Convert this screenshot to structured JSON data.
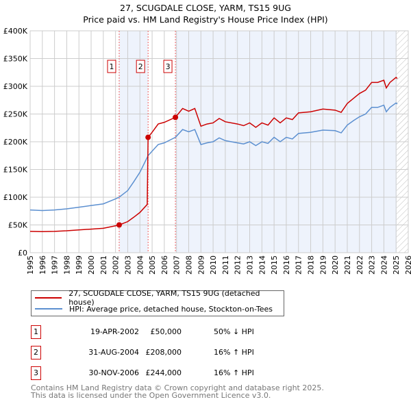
{
  "chart_data": {
    "type": "line",
    "title": "27, SCUGDALE CLOSE, YARM, TS15 9UG",
    "subtitle": "Price paid vs. HM Land Registry's House Price Index (HPI)",
    "xlim": [
      1995,
      2026
    ],
    "ylim": [
      0,
      400000
    ],
    "yticks": [
      {
        "v": 0,
        "label": "£0"
      },
      {
        "v": 50000,
        "label": "£50K"
      },
      {
        "v": 100000,
        "label": "£100K"
      },
      {
        "v": 150000,
        "label": "£150K"
      },
      {
        "v": 200000,
        "label": "£200K"
      },
      {
        "v": 250000,
        "label": "£250K"
      },
      {
        "v": 300000,
        "label": "£300K"
      },
      {
        "v": 350000,
        "label": "£350K"
      },
      {
        "v": 400000,
        "label": "£400K"
      }
    ],
    "xticks": [
      "1995",
      "1996",
      "1997",
      "1998",
      "1999",
      "2000",
      "2001",
      "2002",
      "2003",
      "2004",
      "2005",
      "2006",
      "2007",
      "2008",
      "2009",
      "2010",
      "2011",
      "2012",
      "2013",
      "2014",
      "2015",
      "2016",
      "2017",
      "2018",
      "2019",
      "2020",
      "2021",
      "2022",
      "2023",
      "2024",
      "2025",
      "2026"
    ],
    "grid": true,
    "series": [
      {
        "name": "27, SCUGDALE CLOSE, YARM, TS15 9UG (detached house)",
        "color": "#cc0000",
        "x": [
          1995,
          1996,
          1997,
          1998,
          1999,
          2000,
          2001,
          2002,
          2002.3,
          2003,
          2003.5,
          2004,
          2004.6,
          2004.67,
          2005,
          2005.5,
          2006,
          2006.91,
          2007.5,
          2008,
          2008.5,
          2009,
          2009.5,
          2010,
          2010.5,
          2011,
          2012,
          2012.5,
          2013,
          2013.5,
          2014,
          2014.5,
          2015,
          2015.5,
          2016,
          2016.5,
          2017,
          2018,
          2019,
          2020,
          2020.5,
          2021,
          2021.5,
          2022,
          2022.5,
          2023,
          2023.5,
          2024,
          2024.2,
          2024.5,
          2025,
          2025.1
        ],
        "y": [
          38500,
          38000,
          38500,
          39500,
          41000,
          42500,
          44000,
          48500,
          50000,
          56000,
          64000,
          72500,
          87000,
          208000,
          217000,
          232000,
          235000,
          244000,
          260000,
          255000,
          260000,
          228000,
          232000,
          234000,
          242000,
          236000,
          232000,
          229000,
          234000,
          226000,
          234000,
          230000,
          243000,
          234000,
          243000,
          240000,
          252000,
          254000,
          259000,
          257000,
          253000,
          269000,
          278000,
          287000,
          293000,
          307000,
          307000,
          311000,
          297000,
          307000,
          316000,
          314000
        ]
      },
      {
        "name": "HPI: Average price, detached house, Stockton-on-Tees",
        "color": "#5b8fd0",
        "x": [
          1995,
          1996,
          1997,
          1998,
          1999,
          2000,
          2001,
          2002,
          2002.3,
          2003,
          2003.5,
          2004,
          2004.67,
          2005,
          2005.5,
          2006,
          2006.91,
          2007.5,
          2008,
          2008.5,
          2009,
          2009.5,
          2010,
          2010.5,
          2011,
          2012,
          2012.5,
          2013,
          2013.5,
          2014,
          2014.5,
          2015,
          2015.5,
          2016,
          2016.5,
          2017,
          2018,
          2019,
          2020,
          2020.5,
          2021,
          2021.5,
          2022,
          2022.5,
          2023,
          2023.5,
          2024,
          2024.2,
          2024.5,
          2025,
          2025.1
        ],
        "y": [
          77000,
          76000,
          77000,
          79000,
          82000,
          85000,
          88000,
          97000,
          100000,
          112000,
          128000,
          145000,
          175000,
          183000,
          195000,
          198000,
          208000,
          222000,
          218000,
          222000,
          195000,
          198000,
          200000,
          207000,
          202000,
          198000,
          196000,
          200000,
          193000,
          200000,
          197000,
          208000,
          200000,
          208000,
          205000,
          215000,
          217000,
          221000,
          220000,
          216000,
          230000,
          238000,
          245000,
          250000,
          262000,
          262000,
          266000,
          254000,
          262000,
          270000,
          268000
        ]
      }
    ],
    "sales": [
      {
        "id": "1",
        "x": 2002.3,
        "y": 50000,
        "date": "19-APR-2002",
        "price": "£50,000",
        "hpi": "50% ↓ HPI"
      },
      {
        "id": "2",
        "x": 2004.67,
        "y": 208000,
        "date": "31-AUG-2004",
        "price": "£208,000",
        "hpi": "16% ↑ HPI"
      },
      {
        "id": "3",
        "x": 2006.91,
        "y": 244000,
        "date": "30-NOV-2006",
        "price": "£244,000",
        "hpi": "16% ↑ HPI"
      }
    ],
    "forecast_from": 2025.05,
    "legend_position": "below"
  },
  "footer": {
    "line1": "Contains HM Land Registry data © Crown copyright and database right 2025.",
    "line2": "This data is licensed under the Open Government Licence v3.0."
  }
}
